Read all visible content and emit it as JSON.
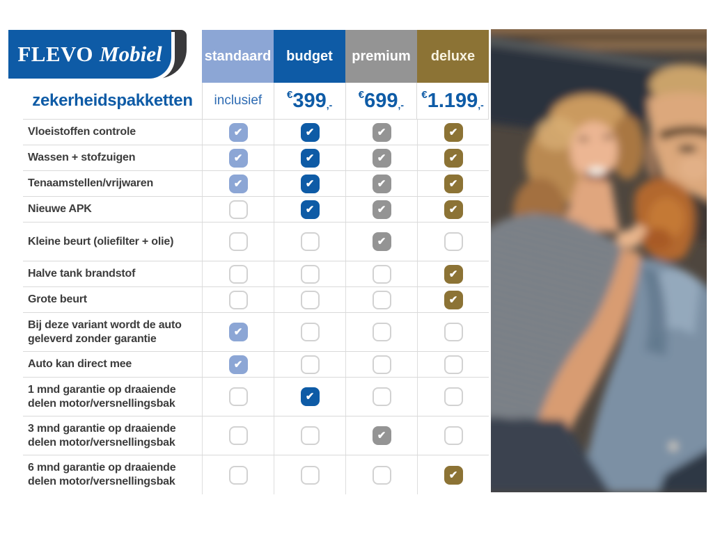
{
  "colors": {
    "brand_blue": "#0e5ba6",
    "grid_line": "#d9d9d9"
  },
  "brand": {
    "primary": "FLEVO",
    "secondary": "Mobiel"
  },
  "title": "zekerheidspakketten",
  "packages": [
    {
      "label": "standaard",
      "color": "#8ca6d5",
      "text_color": "#ffffff",
      "price_text": "inclusief"
    },
    {
      "label": "budget",
      "color": "#0e5ba6",
      "text_color": "#ffffff",
      "currency": "€",
      "amount": "399",
      "amount_suffix": ",-"
    },
    {
      "label": "premium",
      "color": "#949494",
      "text_color": "#ffffff",
      "currency": "€",
      "amount": "699",
      "amount_suffix": ",-"
    },
    {
      "label": "deluxe",
      "color": "#8c7335",
      "text_color": "#f8f2e0",
      "currency": "€",
      "amount": "1.199",
      "amount_suffix": ",-"
    }
  ],
  "features": [
    {
      "label": "Vloeistoffen controle",
      "included": [
        true,
        true,
        true,
        true
      ]
    },
    {
      "label": "Wassen + stofzuigen",
      "included": [
        true,
        true,
        true,
        true
      ]
    },
    {
      "label": "Tenaamstellen/vrijwaren",
      "included": [
        true,
        true,
        true,
        true
      ]
    },
    {
      "label": "Nieuwe APK",
      "included": [
        false,
        true,
        true,
        true
      ]
    },
    {
      "label": "Kleine beurt (oliefilter + olie)",
      "included": [
        false,
        false,
        true,
        false
      ]
    },
    {
      "label": "Halve tank brandstof",
      "included": [
        false,
        false,
        false,
        true
      ]
    },
    {
      "label": "Grote beurt",
      "included": [
        false,
        false,
        false,
        true
      ]
    },
    {
      "label": "Bij deze variant wordt de auto geleverd zonder garantie",
      "included": [
        true,
        false,
        false,
        false
      ]
    },
    {
      "label": "Auto kan direct mee",
      "included": [
        true,
        false,
        false,
        false
      ]
    },
    {
      "label": "1 mnd garantie op draaiende delen motor/versnellingsbak",
      "included": [
        false,
        true,
        false,
        false
      ]
    },
    {
      "label": "3 mnd garantie op draaiende delen motor/versnellingsbak",
      "included": [
        false,
        false,
        true,
        false
      ]
    },
    {
      "label": "6 mnd garantie op draaiende delen motor/versnellingsbak",
      "included": [
        false,
        false,
        false,
        true
      ]
    }
  ]
}
